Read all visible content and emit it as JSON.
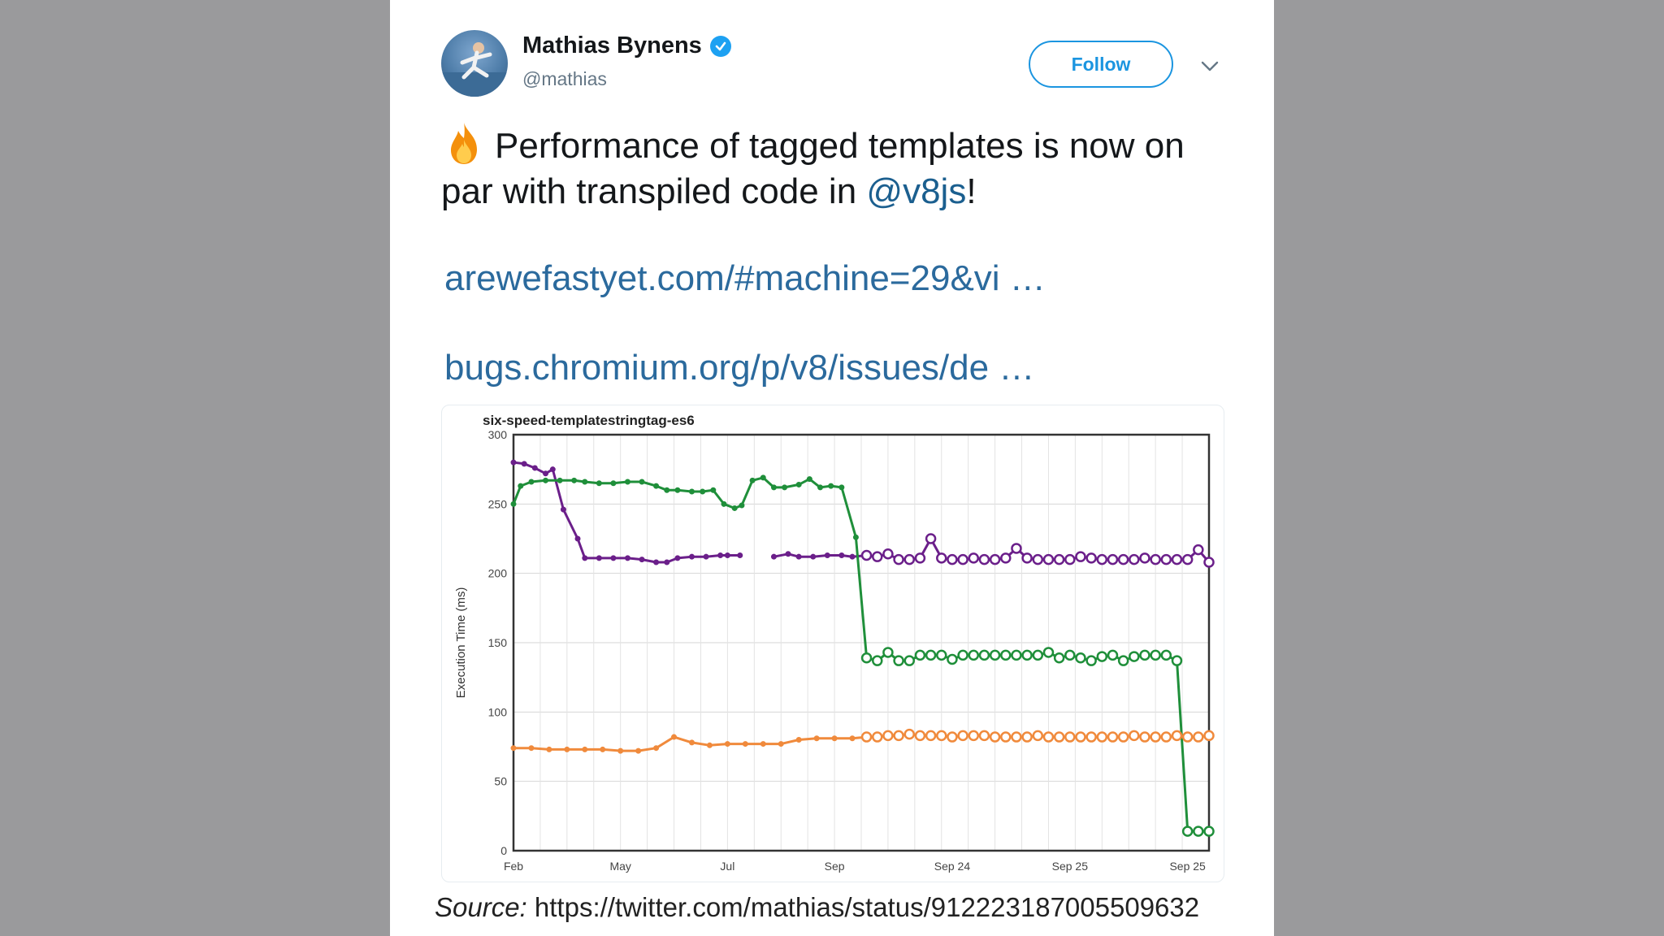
{
  "tweet": {
    "display_name": "Mathias Bynens",
    "handle": "@mathias",
    "follow_label": "Follow",
    "text_part1": "Performance of tagged templates is now on par with transpiled code in ",
    "mention": "@v8js",
    "text_part2": "!",
    "links": [
      "arewefastyet.com/#machine=29&vi  …",
      "bugs.chromium.org/p/v8/issues/de …"
    ]
  },
  "source": {
    "label": "Source:",
    "url": "https://twitter.com/mathias/status/912223187005509632"
  },
  "colors": {
    "link": "#2b6a9d",
    "follow": "#1b95e0",
    "verified": "#1da1f2",
    "purple": "#6b1f8a",
    "green": "#1f8f3a",
    "orange": "#f08a3c"
  },
  "chart_data": {
    "type": "line",
    "title": "six-speed-templatestringtag-es6",
    "ylabel": "Execution Time (ms)",
    "xlabel": "",
    "ylim": [
      0,
      300
    ],
    "yticks": [
      0,
      50,
      100,
      150,
      200,
      250,
      300
    ],
    "x_tick_labels": [
      "Feb",
      "May",
      "Jul",
      "Sep",
      "Sep 24",
      "Sep 25",
      "Sep 25"
    ],
    "x_tick_positions": [
      0,
      3,
      6,
      9,
      12.3,
      15.6,
      18.9
    ],
    "x_range": [
      0,
      19.5
    ],
    "grid": true,
    "series": [
      {
        "color": "#6b1f8a",
        "x": [
          0,
          0.3,
          0.6,
          0.9,
          1.1,
          1.4,
          1.8,
          2.0,
          2.4,
          2.8,
          3.2,
          3.6,
          4.0,
          4.3,
          4.6,
          5.0,
          5.4,
          5.8,
          6.0,
          6.35,
          6.95,
          7.3,
          7.7,
          8.0,
          8.4,
          8.8,
          9.2,
          9.5,
          9.9,
          10.2,
          10.5,
          10.8,
          11.1,
          11.4,
          11.7,
          12.0,
          12.3,
          12.6,
          12.9,
          13.2,
          13.5,
          13.8,
          14.1,
          14.4,
          14.7,
          15.0,
          15.3,
          15.6,
          15.9,
          16.2,
          16.5,
          16.8,
          17.1,
          17.4,
          17.7,
          18.0,
          18.3,
          18.6,
          18.9,
          19.2,
          19.5
        ],
        "values": [
          280,
          279,
          276,
          272,
          275,
          246,
          225,
          211,
          211,
          211,
          211,
          210,
          208,
          208,
          211,
          212,
          212,
          213,
          213,
          213,
          null,
          212,
          214,
          212,
          212,
          213,
          213,
          212,
          213,
          212,
          214,
          210,
          210,
          211,
          225,
          211,
          210,
          210,
          211,
          210,
          210,
          211,
          218,
          211,
          210,
          210,
          210,
          210,
          212,
          211,
          210,
          210,
          210,
          210,
          211,
          210,
          210,
          210,
          210,
          217,
          208
        ],
        "breaks_after": [
          19
        ]
      },
      {
        "color": "#1f8f3a",
        "x": [
          0,
          0.2,
          0.5,
          0.9,
          1.3,
          1.7,
          2.0,
          2.4,
          2.8,
          3.2,
          3.6,
          4.0,
          4.3,
          4.6,
          5.0,
          5.3,
          5.6,
          5.9,
          6.2,
          6.4,
          6.7,
          7.0,
          7.3,
          7.6,
          8.0,
          8.3,
          8.6,
          8.9,
          9.2,
          9.6,
          9.9,
          10.2,
          10.5,
          10.8,
          11.1,
          11.4,
          11.7,
          12.0,
          12.3,
          12.6,
          12.9,
          13.2,
          13.5,
          13.8,
          14.1,
          14.4,
          14.7,
          15.0,
          15.3,
          15.6,
          15.9,
          16.2,
          16.5,
          16.8,
          17.1,
          17.4,
          17.7,
          18.0,
          18.3,
          18.6,
          18.9,
          19.2,
          19.5
        ],
        "values": [
          250,
          263,
          266,
          267,
          267,
          267,
          266,
          265,
          265,
          266,
          266,
          263,
          260,
          260,
          259,
          259,
          260,
          250,
          247,
          249,
          267,
          269,
          262,
          262,
          264,
          268,
          262,
          263,
          262,
          226,
          139,
          137,
          143,
          137,
          137,
          141,
          141,
          141,
          138,
          141,
          141,
          141,
          141,
          141,
          141,
          141,
          141,
          143,
          139,
          141,
          139,
          137,
          140,
          141,
          137,
          140,
          141,
          141,
          141,
          137,
          14,
          14,
          14
        ]
      },
      {
        "color": "#f08a3c",
        "x": [
          0,
          0.5,
          1.0,
          1.5,
          2.0,
          2.5,
          3.0,
          3.5,
          4.0,
          4.5,
          5.0,
          5.5,
          6.0,
          6.5,
          7.0,
          7.5,
          8.0,
          8.5,
          9.0,
          9.5,
          9.9,
          10.2,
          10.5,
          10.8,
          11.1,
          11.4,
          11.7,
          12.0,
          12.3,
          12.6,
          12.9,
          13.2,
          13.5,
          13.8,
          14.1,
          14.4,
          14.7,
          15.0,
          15.3,
          15.6,
          15.9,
          16.2,
          16.5,
          16.8,
          17.1,
          17.4,
          17.7,
          18.0,
          18.3,
          18.6,
          18.9,
          19.2,
          19.5
        ],
        "values": [
          74,
          74,
          73,
          73,
          73,
          73,
          72,
          72,
          74,
          82,
          78,
          76,
          77,
          77,
          77,
          77,
          80,
          81,
          81,
          81,
          82,
          82,
          83,
          83,
          84,
          83,
          83,
          83,
          82,
          83,
          83,
          83,
          82,
          82,
          82,
          82,
          83,
          82,
          82,
          82,
          82,
          82,
          82,
          82,
          82,
          83,
          82,
          82,
          82,
          83,
          82,
          82,
          83
        ]
      }
    ]
  }
}
